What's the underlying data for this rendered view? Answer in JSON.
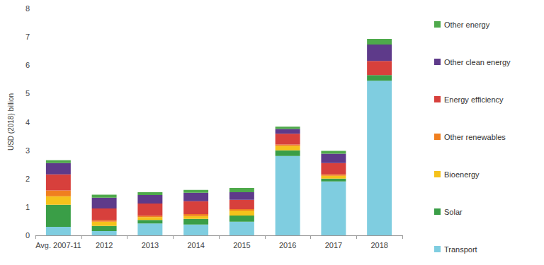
{
  "chart_data": {
    "type": "bar",
    "stacked": true,
    "y_label": "USD (2018) billion",
    "categories": [
      "Avg. 2007-11",
      "2012",
      "2013",
      "2014",
      "2015",
      "2016",
      "2017",
      "2018"
    ],
    "series": [
      {
        "name": "Transport",
        "color": "#7fcde0",
        "values": [
          0.3,
          0.15,
          0.42,
          0.38,
          0.48,
          2.8,
          1.9,
          5.45
        ]
      },
      {
        "name": "Solar",
        "color": "#3a9e47",
        "values": [
          0.78,
          0.18,
          0.12,
          0.2,
          0.22,
          0.2,
          0.1,
          0.2
        ]
      },
      {
        "name": "Bioenergy",
        "color": "#f5c21b",
        "values": [
          0.3,
          0.15,
          0.1,
          0.1,
          0.17,
          0.15,
          0.1,
          0.0
        ]
      },
      {
        "name": "Other renewables",
        "color": "#f07f1f",
        "values": [
          0.2,
          0.05,
          0.05,
          0.07,
          0.05,
          0.05,
          0.05,
          0.0
        ]
      },
      {
        "name": "Energy efficiency",
        "color": "#d7403c",
        "values": [
          0.57,
          0.42,
          0.43,
          0.45,
          0.33,
          0.38,
          0.4,
          0.5
        ]
      },
      {
        "name": "Other clean energy",
        "color": "#5e3a8a",
        "values": [
          0.4,
          0.38,
          0.3,
          0.3,
          0.27,
          0.17,
          0.33,
          0.58
        ]
      },
      {
        "name": "Other energy",
        "color": "#4ea94b",
        "values": [
          0.1,
          0.1,
          0.1,
          0.1,
          0.15,
          0.08,
          0.1,
          0.2
        ]
      }
    ],
    "ylim": [
      0,
      8
    ],
    "yticks": [
      0,
      1,
      2,
      3,
      4,
      5,
      6,
      7,
      8
    ],
    "grid": false,
    "legend": "right"
  }
}
